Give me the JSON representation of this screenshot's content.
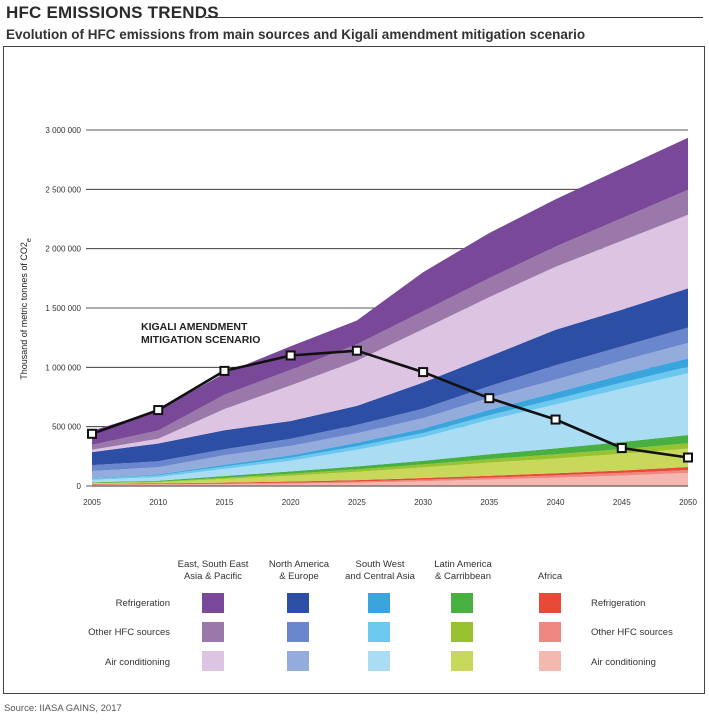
{
  "header": {
    "title": "HFC EMISSIONS TRENDS",
    "subtitle": "Evolution of HFC emissions from main sources and Kigali amendment mitigation scenario"
  },
  "chart_data": {
    "type": "area",
    "stacked": true,
    "x": [
      2005,
      2010,
      2015,
      2020,
      2025,
      2030,
      2035,
      2040,
      2045,
      2050
    ],
    "ylabel": "Thousand of metric tonnes of CO2e",
    "ylim": [
      0,
      3000000
    ],
    "yticks": [
      0,
      500000,
      1000000,
      1500000,
      2000000,
      2500000,
      3000000
    ],
    "ytick_labels": [
      "0",
      "500 000",
      "1 000 000",
      "1 500 000",
      "2 000 000",
      "2 500 000",
      "3 000 000"
    ],
    "xtick_labels": [
      "2005",
      "2010",
      "2015",
      "2020",
      "2025",
      "2030",
      "2035",
      "2040",
      "2045",
      "2050"
    ],
    "grid": "horizontal",
    "series": [
      {
        "name": "Africa - Air conditioning",
        "color": "#f4b8b0",
        "values": [
          10000,
          12000,
          15000,
          20000,
          28000,
          40000,
          55000,
          70000,
          88000,
          110000
        ]
      },
      {
        "name": "Africa - Other HFC sources",
        "color": "#ee8880",
        "values": [
          3000,
          4000,
          6000,
          8000,
          10000,
          13000,
          16000,
          19000,
          22000,
          25000
        ]
      },
      {
        "name": "Africa - Refrigeration",
        "color": "#e84a3a",
        "values": [
          5000,
          6000,
          8000,
          10000,
          12000,
          14000,
          16000,
          18000,
          21000,
          25000
        ]
      },
      {
        "name": "Latin America & Carribbean - Air conditioning",
        "color": "#c8d85a",
        "values": [
          5000,
          10000,
          30000,
          50000,
          70000,
          90000,
          110000,
          125000,
          140000,
          155000
        ]
      },
      {
        "name": "Latin America & Carribbean - Other HFC sources",
        "color": "#98c230",
        "values": [
          3000,
          5000,
          10000,
          15000,
          20000,
          25000,
          30000,
          35000,
          40000,
          45000
        ]
      },
      {
        "name": "Latin America & Carribbean - Refrigeration",
        "color": "#48b040",
        "values": [
          5000,
          8000,
          15000,
          20000,
          25000,
          30000,
          40000,
          50000,
          60000,
          70000
        ]
      },
      {
        "name": "South West and Central Asia - Air conditioning",
        "color": "#aadcf4",
        "values": [
          20000,
          30000,
          60000,
          90000,
          140000,
          200000,
          290000,
          370000,
          450000,
          520000
        ]
      },
      {
        "name": "South West and Central Asia - Other HFC sources",
        "color": "#6cc8ee",
        "values": [
          10000,
          15000,
          20000,
          25000,
          30000,
          35000,
          40000,
          45000,
          50000,
          55000
        ]
      },
      {
        "name": "South West and Central Asia - Refrigeration",
        "color": "#3aa4dc",
        "values": [
          5000,
          8000,
          15000,
          20000,
          30000,
          35000,
          45000,
          55000,
          65000,
          70000
        ]
      },
      {
        "name": "North America & Europe - Air conditioning",
        "color": "#94acdc",
        "values": [
          60000,
          60000,
          80000,
          80000,
          80000,
          90000,
          100000,
          110000,
          120000,
          130000
        ]
      },
      {
        "name": "North America & Europe - Other HFC sources",
        "color": "#6a86cc",
        "values": [
          50000,
          50000,
          50000,
          60000,
          70000,
          80000,
          100000,
          120000,
          120000,
          130000
        ]
      },
      {
        "name": "North America & Europe - Refrigeration",
        "color": "#2c4ea4",
        "values": [
          110000,
          150000,
          160000,
          150000,
          160000,
          220000,
          250000,
          300000,
          310000,
          330000
        ]
      },
      {
        "name": "East, South East Asia & Pacific - Air conditioning",
        "color": "#dcc4e2",
        "values": [
          20000,
          40000,
          180000,
          300000,
          380000,
          450000,
          500000,
          530000,
          580000,
          620000
        ]
      },
      {
        "name": "East, South East Asia & Pacific - Other HFC sources",
        "color": "#9a78aa",
        "values": [
          40000,
          70000,
          120000,
          130000,
          140000,
          150000,
          160000,
          170000,
          190000,
          210000
        ]
      },
      {
        "name": "East, South East Asia & Pacific - Refrigeration",
        "color": "#7a4898",
        "values": [
          120000,
          170000,
          180000,
          200000,
          200000,
          330000,
          380000,
          400000,
          420000,
          440000
        ]
      }
    ],
    "mitigation": {
      "name": "Kigali amendment mitigation scenario",
      "values": [
        440000,
        640000,
        970000,
        1100000,
        1140000,
        960000,
        740000,
        560000,
        320000,
        240000
      ]
    },
    "annotation": [
      "KIGALI AMENDMENT",
      "MITIGATION SCENARIO"
    ]
  },
  "legend": {
    "regions": [
      "East, South East Asia & Pacific",
      "North America & Europe",
      "South West and Central Asia",
      "Latin America & Carribbean",
      "Africa"
    ],
    "region_lines": [
      [
        "East, South East",
        "Asia & Pacific"
      ],
      [
        "North America",
        "& Europe"
      ],
      [
        "South West",
        "and Central Asia"
      ],
      [
        "Latin America",
        "& Carribbean"
      ],
      [
        "Africa",
        ""
      ]
    ],
    "rows": [
      "Refrigeration",
      "Other HFC sources",
      "Air conditioning"
    ],
    "colors": [
      [
        "#7a4898",
        "#9a78aa",
        "#dcc4e2"
      ],
      [
        "#2c4ea4",
        "#6a86cc",
        "#94acdc"
      ],
      [
        "#3aa4dc",
        "#6cc8ee",
        "#aadcf4"
      ],
      [
        "#48b040",
        "#98c230",
        "#c8d85a"
      ],
      [
        "#e84a3a",
        "#ee8880",
        "#f4b8b0"
      ]
    ]
  },
  "source": "Source: IIASA GAINS, 2017"
}
